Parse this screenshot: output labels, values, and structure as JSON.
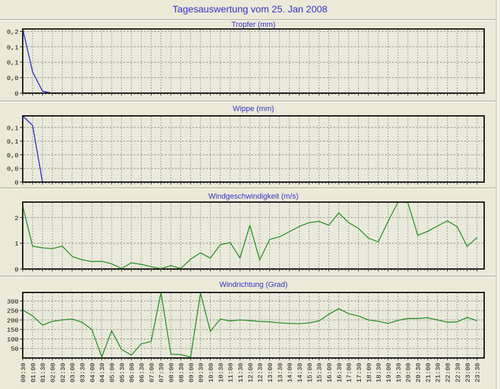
{
  "page": {
    "title": "Tagesauswertung vom 25. Jan 2008"
  },
  "colors": {
    "page_bg": "#ECE9D8",
    "plot_bg": "#E9E9DC",
    "frame": "#1C1C1C",
    "grid": "#9C9A8C",
    "title_blue": "#3333C8",
    "line_blue": "#2222CC",
    "line_green": "#1E8E1E",
    "edge_strip": "#F3F1E5"
  },
  "x_labels": [
    "00:30",
    "01:00",
    "01:30",
    "02:00",
    "02:30",
    "03:00",
    "03:30",
    "04:00",
    "04:30",
    "05:00",
    "05:30",
    "06:00",
    "06:30",
    "07:00",
    "07:30",
    "08:00",
    "08:30",
    "09:00",
    "09:30",
    "10:00",
    "10:30",
    "11:00",
    "11:30",
    "12:00",
    "12:30",
    "13:00",
    "13:30",
    "14:00",
    "14:30",
    "15:00",
    "15:30",
    "16:00",
    "16:30",
    "17:00",
    "17:30",
    "18:00",
    "18:30",
    "19:00",
    "19:30",
    "20:00",
    "20:30",
    "21:00",
    "21:30",
    "22:00",
    "22:30",
    "23:00",
    "23:30"
  ],
  "chart_data": [
    {
      "type": "line",
      "name": "tropfer",
      "title": "Tropfer (mm)",
      "ylabel": "mm",
      "color_key": "line_blue",
      "grid": true,
      "ylim": [
        0,
        0.166
      ],
      "yticks": [
        {
          "v": 0.16,
          "label": "0,2"
        },
        {
          "v": 0.12,
          "label": "0,1"
        },
        {
          "v": 0.08,
          "label": "0,1"
        },
        {
          "v": 0.04,
          "label": "0,0"
        },
        {
          "v": 0,
          "label": "0"
        }
      ],
      "values": [
        0.185,
        0.055,
        0.005,
        0,
        0,
        0,
        0,
        0,
        0,
        0,
        0,
        0,
        0,
        0,
        0,
        0,
        0,
        0,
        0,
        0,
        0,
        0,
        0,
        0,
        0,
        0,
        0,
        0,
        0,
        0,
        0,
        0,
        0,
        0,
        0,
        0,
        0,
        0,
        0,
        0,
        0,
        0,
        0,
        0,
        0,
        0,
        0
      ]
    },
    {
      "type": "line",
      "name": "wippe",
      "title": "Wippe (mm)",
      "ylabel": "mm",
      "color_key": "line_blue",
      "grid": true,
      "ylim": [
        0,
        0.097
      ],
      "yticks": [
        {
          "v": 0.08,
          "label": "0,1"
        },
        {
          "v": 0.06,
          "label": "0,1"
        },
        {
          "v": 0.04,
          "label": "0,0"
        },
        {
          "v": 0.02,
          "label": "0,0"
        },
        {
          "v": 0,
          "label": "0"
        }
      ],
      "values": [
        0.2,
        0.083,
        0,
        0,
        0,
        0,
        0,
        0,
        0,
        0,
        0,
        0,
        0,
        0,
        0,
        0,
        0,
        0,
        0,
        0,
        0,
        0,
        0,
        0,
        0,
        0,
        0,
        0,
        0,
        0,
        0,
        0,
        0,
        0,
        0,
        0,
        0,
        0,
        0,
        0,
        0,
        0,
        0,
        0,
        0,
        0,
        0
      ]
    },
    {
      "type": "line",
      "name": "windgeschwindigkeit",
      "title": "Windgeschwindigkeit (m/s)",
      "ylabel": "m/s",
      "color_key": "line_green",
      "grid": true,
      "ylim": [
        0,
        2.6
      ],
      "yticks": [
        {
          "v": 2,
          "label": "2"
        },
        {
          "v": 1,
          "label": "1"
        },
        {
          "v": 0,
          "label": "0"
        }
      ],
      "values": [
        2.45,
        0.89,
        0.82,
        0.79,
        0.89,
        0.49,
        0.36,
        0.29,
        0.3,
        0.2,
        0.02,
        0.24,
        0.18,
        0.09,
        0.01,
        0.13,
        0.02,
        0.38,
        0.63,
        0.42,
        0.94,
        1.03,
        0.43,
        1.7,
        0.35,
        1.15,
        1.25,
        1.45,
        1.65,
        1.8,
        1.85,
        1.7,
        2.18,
        1.8,
        1.58,
        1.2,
        1.05,
        1.85,
        2.72,
        2.58,
        1.31,
        1.46,
        1.67,
        1.87,
        1.64,
        0.88,
        1.22
      ]
    },
    {
      "type": "line",
      "name": "windrichtung",
      "title": "Windrichtung (Grad)",
      "ylabel": "Grad",
      "color_key": "line_green",
      "grid": true,
      "ylim": [
        0,
        345
      ],
      "yticks": [
        {
          "v": 300,
          "label": "300"
        },
        {
          "v": 250,
          "label": "250"
        },
        {
          "v": 200,
          "label": "200"
        },
        {
          "v": 150,
          "label": "150"
        },
        {
          "v": 100,
          "label": "100"
        },
        {
          "v": 50,
          "label": "50"
        }
      ],
      "values": [
        252,
        222,
        173,
        193,
        200,
        205,
        188,
        150,
        5,
        143,
        45,
        15,
        74,
        86,
        345,
        20,
        18,
        5,
        343,
        140,
        205,
        195,
        200,
        197,
        192,
        190,
        185,
        182,
        180,
        185,
        195,
        230,
        260,
        233,
        221,
        200,
        193,
        182,
        198,
        208,
        208,
        212,
        200,
        188,
        190,
        214,
        196
      ]
    }
  ]
}
